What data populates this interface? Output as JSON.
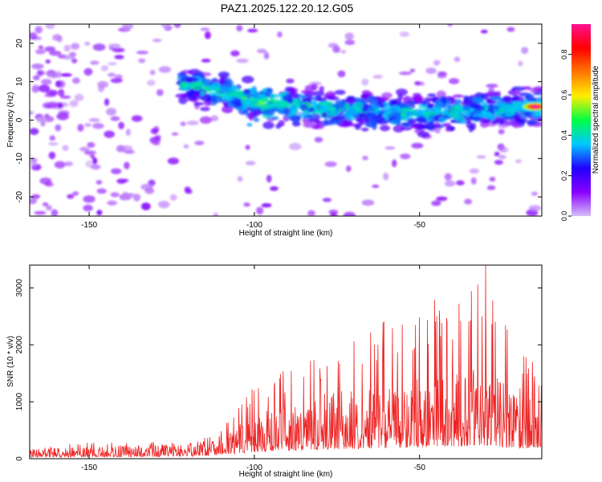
{
  "chart_data": [
    {
      "type": "heatmap",
      "title": "PAZ1.2025.122.20.12.G05",
      "xlabel": "Height of straight line (km)",
      "ylabel": "Frequency (Hz)",
      "xlim": [
        -168,
        -13
      ],
      "ylim": [
        -25,
        25
      ],
      "x_ticks": [
        -150,
        -100,
        -50
      ],
      "y_ticks": [
        -20,
        -10,
        0,
        10,
        20
      ],
      "colorbar": {
        "label": "Normalized spectral amplitude",
        "range": [
          0.0,
          0.95
        ],
        "ticks": [
          0.0,
          0.2,
          0.4,
          0.6,
          0.8
        ],
        "colormap": [
          "#d6bef8",
          "#8800ff",
          "#2200ff",
          "#00c8ff",
          "#00ff44",
          "#ffee00",
          "#ff7700",
          "#ff0000",
          "#ff1190"
        ]
      },
      "ridge": [
        {
          "x": -118,
          "y": 9
        },
        {
          "x": -100,
          "y": 5
        },
        {
          "x": -80,
          "y": 3
        },
        {
          "x": -60,
          "y": 2
        },
        {
          "x": -40,
          "y": 2
        },
        {
          "x": -25,
          "y": 3
        },
        {
          "x": -13,
          "y": 3
        }
      ],
      "peak": {
        "x": -15,
        "y": 3.5,
        "value": 0.95
      }
    },
    {
      "type": "line",
      "xlabel": "Height of straight line (km)",
      "ylabel": "SNR (10 * v/v)",
      "xlim": [
        -168,
        -13
      ],
      "ylim": [
        0,
        3400
      ],
      "x_ticks": [
        -150,
        -100,
        -50
      ],
      "y_ticks": [
        0,
        1000,
        2000,
        3000
      ],
      "line_color": "#ee2222",
      "envelope": [
        {
          "x": -168,
          "mean": 100,
          "max": 200
        },
        {
          "x": -150,
          "mean": 120,
          "max": 300
        },
        {
          "x": -120,
          "mean": 150,
          "max": 280
        },
        {
          "x": -110,
          "mean": 280,
          "max": 500
        },
        {
          "x": -100,
          "mean": 450,
          "max": 1300
        },
        {
          "x": -80,
          "mean": 650,
          "max": 1850
        },
        {
          "x": -70,
          "mean": 700,
          "max": 2100
        },
        {
          "x": -60,
          "mean": 750,
          "max": 2500
        },
        {
          "x": -40,
          "mean": 850,
          "max": 2900
        },
        {
          "x": -30,
          "mean": 950,
          "max": 3400
        },
        {
          "x": -25,
          "mean": 800,
          "max": 2700
        },
        {
          "x": -20,
          "mean": 700,
          "max": 1900
        },
        {
          "x": -13,
          "mean": 800,
          "max": 1700
        }
      ]
    }
  ]
}
